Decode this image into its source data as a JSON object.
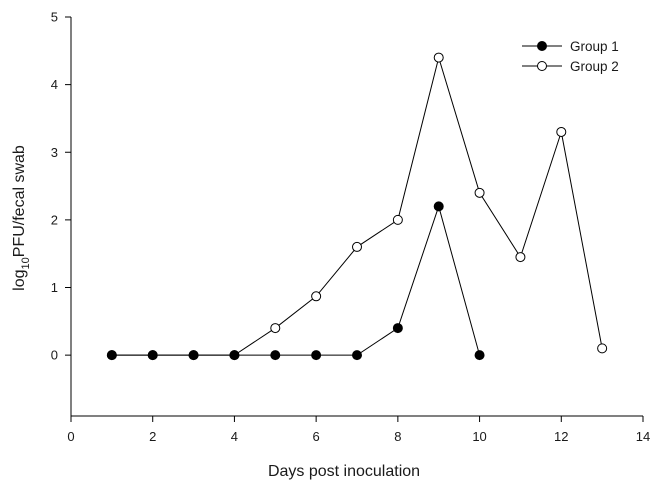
{
  "chart_data": {
    "type": "line",
    "title": "",
    "xlabel": "Days post inoculation",
    "ylabel_main": "log",
    "ylabel_sub": "10",
    "ylabel_rest": "PFU/fecal swab",
    "xlim": [
      0,
      14
    ],
    "ylim": [
      -0.9,
      5
    ],
    "xticks": [
      "0",
      "2",
      "4",
      "6",
      "8",
      "10",
      "12",
      "14"
    ],
    "yticks": [
      "0",
      "1",
      "2",
      "3",
      "4",
      "5"
    ],
    "grid": false,
    "legend_position": "top-right",
    "series": [
      {
        "name": "Group 1",
        "marker": "filled-circle",
        "color": "#000000",
        "x": [
          1,
          2,
          3,
          4,
          5,
          6,
          7,
          8,
          9,
          10
        ],
        "y": [
          0,
          0,
          0,
          0,
          0,
          0,
          0,
          0.4,
          2.2,
          0
        ]
      },
      {
        "name": "Group 2",
        "marker": "open-circle",
        "color": "#000000",
        "x": [
          1,
          2,
          3,
          4,
          5,
          6,
          7,
          8,
          9,
          10,
          11,
          12,
          13
        ],
        "y": [
          0,
          0,
          0,
          0,
          0.4,
          0.87,
          1.6,
          2.0,
          4.4,
          2.4,
          1.45,
          3.3,
          0.1
        ]
      }
    ]
  }
}
